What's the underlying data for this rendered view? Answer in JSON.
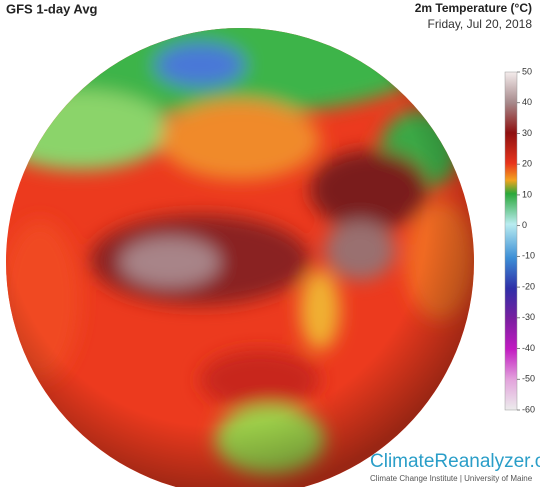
{
  "header": {
    "title": "GFS 1-day Avg",
    "variable": "2m Temperature (°C)",
    "date": "Friday, Jul 20, 2018"
  },
  "colorbar": {
    "lim": [
      -60,
      50
    ],
    "ticks": [
      50,
      40,
      30,
      20,
      10,
      0,
      -10,
      -20,
      -30,
      -40,
      -50,
      -60
    ]
  },
  "footer": {
    "site": "ClimateReanalyzer.org",
    "credit": "Climate Change Institute | University of Maine"
  }
}
